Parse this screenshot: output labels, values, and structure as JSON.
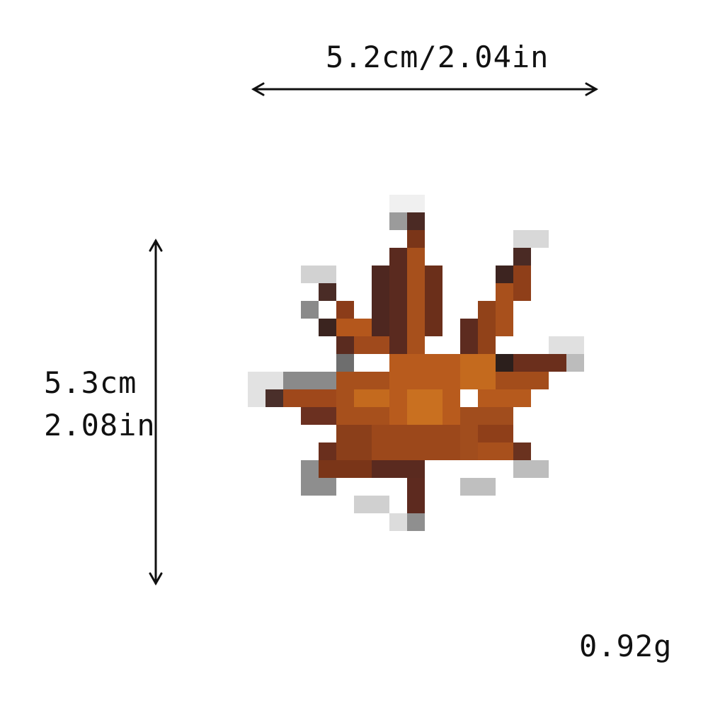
{
  "dimensions": {
    "width": "5.2cm/2.04in",
    "height_cm": "5.3cm",
    "height_in": "2.08in"
  },
  "weight": "0.92g",
  "product": {
    "icon": "maple-leaf-icon",
    "colors": {
      "light": "#c46a1e",
      "mid": "#a7501c",
      "dark": "#7a3518",
      "outline": "#4e2a22",
      "edge": "#8e8e8e"
    }
  }
}
